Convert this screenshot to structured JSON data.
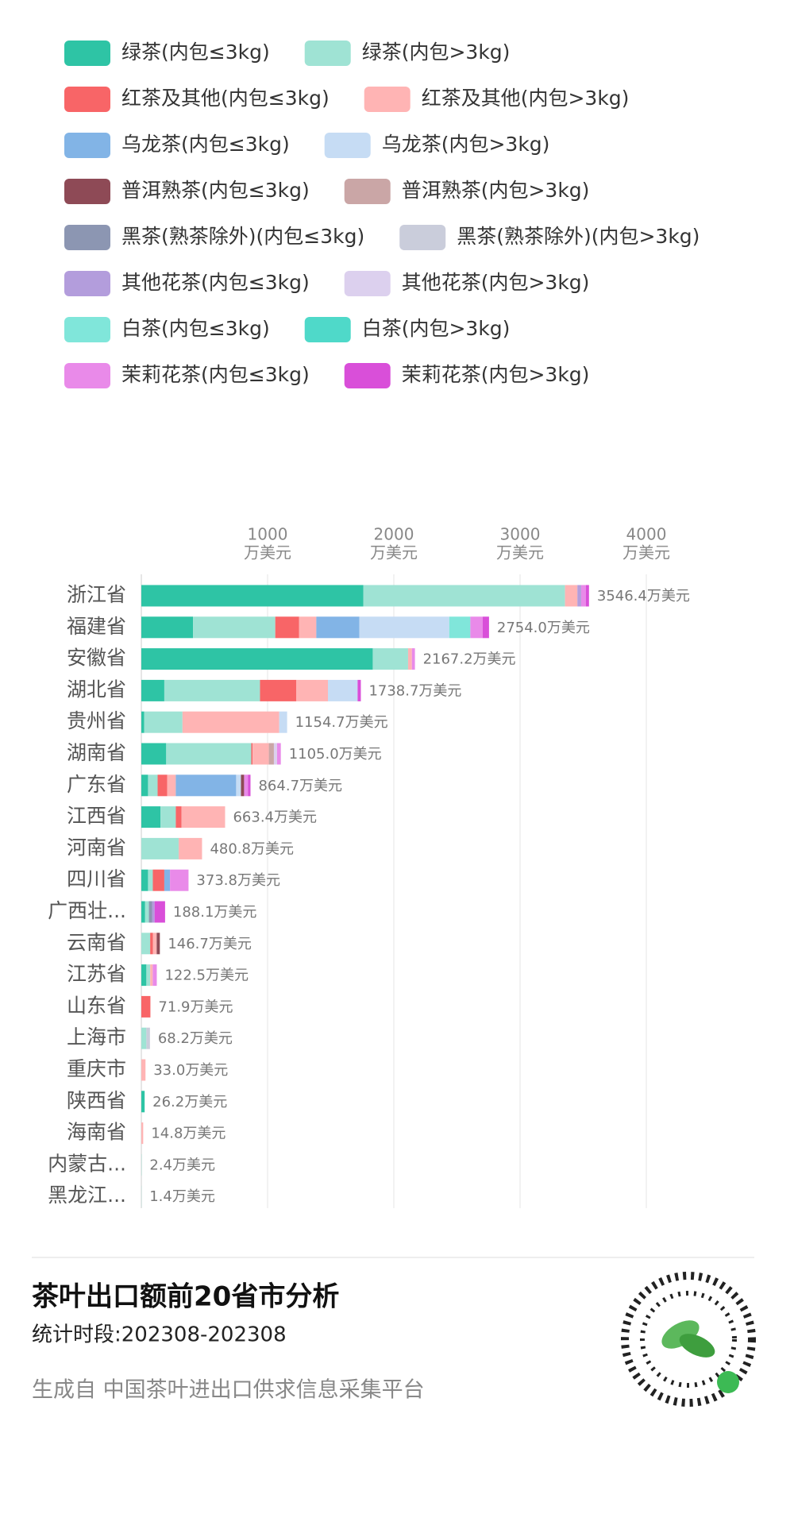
{
  "chart_data": {
    "type": "stacked-bar-horizontal",
    "title": "茶叶出口额前20省市分析",
    "subtitle": "统计时段:202308-202308",
    "source": "生成自 中国茶叶进出口供求信息采集平台",
    "x_unit": "万美元",
    "categories": [
      "浙江省",
      "福建省",
      "安徽省",
      "湖北省",
      "贵州省",
      "湖南省",
      "广东省",
      "江西省",
      "河南省",
      "四川省",
      "广西壮...",
      "云南省",
      "江苏省",
      "山东省",
      "上海市",
      "重庆市",
      "陕西省",
      "海南省",
      "内蒙古...",
      "黑龙江..."
    ],
    "xlim": [
      0,
      4000
    ],
    "xticks": [
      1000,
      2000,
      3000,
      4000
    ],
    "grid": true,
    "totals": [
      3546.4,
      2754.0,
      2167.2,
      1738.7,
      1154.7,
      1105.0,
      864.7,
      663.4,
      480.8,
      373.8,
      188.1,
      146.7,
      122.5,
      71.9,
      68.2,
      33.0,
      26.2,
      14.8,
      2.4,
      1.4
    ],
    "total_labels": [
      "3546.4万美元",
      "2754.0万美元",
      "2167.2万美元",
      "1738.7万美元",
      "1154.7万美元",
      "1105.0万美元",
      "864.7万美元",
      "663.4万美元",
      "480.8万美元",
      "373.8万美元",
      "188.1万美元",
      "146.7万美元",
      "122.5万美元",
      "71.9万美元",
      "68.2万美元",
      "33.0万美元",
      "26.2万美元",
      "14.8万美元",
      "2.4万美元",
      "1.4万美元"
    ],
    "series": [
      {
        "name": "绿茶(内包≤3kg)",
        "color": "#2ec4a5",
        "values": [
          1758,
          409,
          1833,
          182,
          23,
          197,
          53,
          152,
          0,
          53,
          30,
          0,
          40,
          0,
          0,
          0,
          26.2,
          0,
          0,
          0
        ]
      },
      {
        "name": "绿茶(内包>3kg)",
        "color": "#9fe3d4",
        "values": [
          1598,
          652,
          280,
          758,
          303,
          674,
          76,
          121,
          296,
          38,
          30,
          70,
          30,
          0,
          40,
          0,
          0,
          0,
          2.4,
          1.4
        ]
      },
      {
        "name": "红茶及其他(内包≤3kg)",
        "color": "#f86567",
        "values": [
          0,
          189,
          0,
          288,
          0,
          10,
          76,
          45,
          0,
          91,
          0,
          21.7,
          0,
          71.9,
          0,
          0,
          0,
          0,
          0,
          0
        ]
      },
      {
        "name": "红茶及其他(内包>3kg)",
        "color": "#ffb4b4",
        "values": [
          98,
          136,
          30,
          250,
          766,
          129,
          68,
          345.4,
          184.8,
          0,
          0,
          30,
          20,
          0,
          0,
          33,
          0,
          14.8,
          0,
          0
        ]
      },
      {
        "name": "乌龙茶(内包≤3kg)",
        "color": "#82b4e6",
        "values": [
          0,
          341,
          0,
          0,
          0,
          0,
          478,
          0,
          0,
          45,
          0,
          0,
          0,
          0,
          0,
          0,
          0,
          0,
          0,
          0
        ]
      },
      {
        "name": "乌龙茶(内包>3kg)",
        "color": "#c6dcf4",
        "values": [
          0,
          712,
          0,
          235,
          62.7,
          0,
          38,
          0,
          0,
          0,
          0,
          0,
          0,
          0,
          0,
          0,
          0,
          0,
          0,
          0
        ]
      },
      {
        "name": "普洱熟茶(内包≤3kg)",
        "color": "#8e4a56",
        "values": [
          0,
          0,
          0,
          0,
          0,
          0,
          25,
          0,
          0,
          0,
          0,
          25,
          0,
          0,
          0,
          0,
          0,
          0,
          0,
          0
        ]
      },
      {
        "name": "普洱熟茶(内包>3kg)",
        "color": "#caa6a6",
        "values": [
          0,
          0,
          0,
          0,
          0,
          40,
          0,
          0,
          0,
          0,
          0,
          0,
          0,
          0,
          0,
          0,
          0,
          0,
          0,
          0
        ]
      },
      {
        "name": "黑茶(熟茶除外)(内包≤3kg)",
        "color": "#8c96b2",
        "values": [
          0,
          0,
          0,
          0,
          0,
          0,
          0,
          0,
          0,
          0,
          25,
          0,
          0,
          0,
          0,
          0,
          0,
          0,
          0,
          0
        ]
      },
      {
        "name": "黑茶(熟茶除外)(内包>3kg)",
        "color": "#cacddb",
        "values": [
          0,
          0,
          0,
          0,
          0,
          0,
          0,
          0,
          0,
          0,
          0,
          0,
          0,
          0,
          28.2,
          0,
          0,
          0,
          0,
          0
        ]
      },
      {
        "name": "其他花茶(内包≤3kg)",
        "color": "#b39ddc",
        "values": [
          30,
          0,
          0,
          0,
          0,
          0,
          0,
          0,
          0,
          0,
          20,
          0,
          0,
          0,
          0,
          0,
          0,
          0,
          0,
          0
        ]
      },
      {
        "name": "其他花茶(内包>3kg)",
        "color": "#dcd0ee",
        "values": [
          0,
          0,
          0,
          0,
          0,
          25,
          0,
          0,
          0,
          0,
          0,
          0,
          0,
          0,
          0,
          0,
          0,
          0,
          0,
          0
        ]
      },
      {
        "name": "白茶(内包≤3kg)",
        "color": "#80e6da",
        "values": [
          0,
          167,
          0,
          0,
          0,
          0,
          0,
          0,
          0,
          0,
          0,
          0,
          0,
          0,
          0,
          0,
          0,
          0,
          0,
          0
        ]
      },
      {
        "name": "白茶(内包>3kg)",
        "color": "#4fd9c9",
        "values": [
          0,
          0,
          0,
          0,
          0,
          0,
          0,
          0,
          0,
          0,
          0,
          0,
          0,
          0,
          0,
          0,
          0,
          0,
          0,
          0
        ]
      },
      {
        "name": "茉莉花茶(内包≤3kg)",
        "color": "#e98ae9",
        "values": [
          38,
          98,
          24.2,
          0,
          0,
          30,
          30,
          0,
          0,
          146.8,
          0,
          0,
          32.5,
          0,
          0,
          0,
          0,
          0,
          0,
          0
        ]
      },
      {
        "name": "茉莉花茶(内包>3kg)",
        "color": "#d94fd9",
        "values": [
          24,
          50,
          0,
          25.7,
          0,
          0,
          20.7,
          0,
          0,
          0,
          83.1,
          0,
          0,
          0,
          0,
          0,
          0,
          0,
          0,
          0
        ]
      }
    ]
  }
}
